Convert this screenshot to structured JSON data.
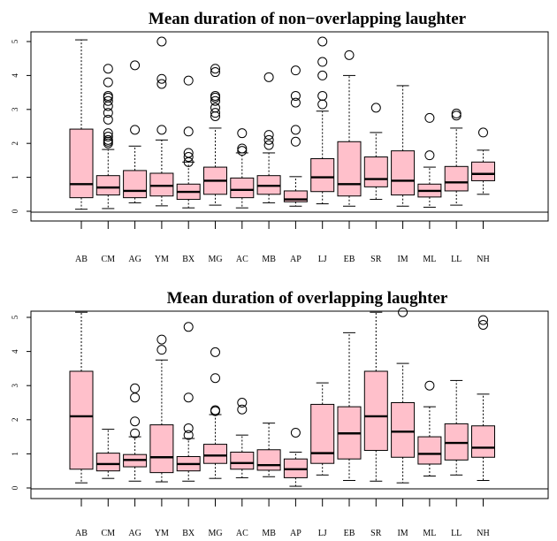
{
  "chart_data": [
    {
      "type": "boxplot",
      "title": "Mean duration of non−overlapping laughter",
      "xlabel": "",
      "ylabel": "",
      "ylim": [
        0,
        5
      ],
      "yticks": [
        "0",
        "1",
        "2",
        "3",
        "4",
        "5"
      ],
      "categories": [
        "AB",
        "CM",
        "AG",
        "YM",
        "BX",
        "MG",
        "AC",
        "MB",
        "AP",
        "LJ",
        "EB",
        "SR",
        "IM",
        "ML",
        "LL",
        "NH"
      ],
      "fill_color": "#ffc0cb",
      "boxes": [
        {
          "q1": 0.4,
          "median": 0.8,
          "q3": 2.42,
          "lower": 0.06,
          "upper": 5.05,
          "outliers": []
        },
        {
          "q1": 0.48,
          "median": 0.7,
          "q3": 1.05,
          "lower": 0.08,
          "upper": 1.82,
          "outliers": [
            2.0,
            2.05,
            2.1,
            2.2,
            2.3,
            2.7,
            2.9,
            3.1,
            3.25,
            3.35,
            3.4,
            3.8,
            4.2
          ]
        },
        {
          "q1": 0.4,
          "median": 0.6,
          "q3": 1.2,
          "lower": 0.25,
          "upper": 1.92,
          "outliers": [
            2.4,
            4.3
          ]
        },
        {
          "q1": 0.45,
          "median": 0.75,
          "q3": 1.12,
          "lower": 0.16,
          "upper": 2.1,
          "outliers": [
            2.4,
            3.75,
            3.9,
            5.0
          ]
        },
        {
          "q1": 0.35,
          "median": 0.57,
          "q3": 0.8,
          "lower": 0.1,
          "upper": 1.45,
          "outliers": [
            1.45,
            1.6,
            1.72,
            2.35,
            3.85
          ]
        },
        {
          "q1": 0.5,
          "median": 0.9,
          "q3": 1.3,
          "lower": 0.18,
          "upper": 2.45,
          "outliers": [
            2.8,
            2.9,
            3.05,
            3.25,
            3.35,
            3.4,
            4.1,
            4.2
          ]
        },
        {
          "q1": 0.4,
          "median": 0.63,
          "q3": 0.98,
          "lower": 0.1,
          "upper": 1.72,
          "outliers": [
            1.78,
            1.85,
            2.3
          ]
        },
        {
          "q1": 0.5,
          "median": 0.75,
          "q3": 1.05,
          "lower": 0.25,
          "upper": 1.72,
          "outliers": [
            1.95,
            2.1,
            2.25,
            3.95
          ]
        },
        {
          "q1": 0.28,
          "median": 0.35,
          "q3": 0.6,
          "lower": 0.15,
          "upper": 1.02,
          "outliers": [
            2.05,
            2.4,
            3.2,
            3.4,
            4.15
          ]
        },
        {
          "q1": 0.58,
          "median": 1.0,
          "q3": 1.55,
          "lower": 0.22,
          "upper": 2.95,
          "outliers": [
            3.15,
            3.4,
            4.0,
            4.4,
            5.0
          ]
        },
        {
          "q1": 0.45,
          "median": 0.8,
          "q3": 2.05,
          "lower": 0.15,
          "upper": 4.0,
          "outliers": [
            4.6
          ]
        },
        {
          "q1": 0.72,
          "median": 0.95,
          "q3": 1.6,
          "lower": 0.35,
          "upper": 2.32,
          "outliers": [
            3.05
          ]
        },
        {
          "q1": 0.48,
          "median": 0.9,
          "q3": 1.78,
          "lower": 0.15,
          "upper": 3.7,
          "outliers": []
        },
        {
          "q1": 0.42,
          "median": 0.6,
          "q3": 0.8,
          "lower": 0.12,
          "upper": 1.3,
          "outliers": [
            1.65,
            2.75
          ]
        },
        {
          "q1": 0.6,
          "median": 0.85,
          "q3": 1.32,
          "lower": 0.18,
          "upper": 2.45,
          "outliers": [
            2.82,
            2.88
          ]
        },
        {
          "q1": 0.9,
          "median": 1.1,
          "q3": 1.45,
          "lower": 0.5,
          "upper": 1.8,
          "outliers": [
            2.32
          ]
        }
      ]
    },
    {
      "type": "boxplot",
      "title": "Mean duration of overlapping laughter",
      "xlabel": "",
      "ylabel": "",
      "ylim": [
        0,
        5.15
      ],
      "yticks": [
        "0",
        "1",
        "2",
        "3",
        "4",
        "5"
      ],
      "categories": [
        "AB",
        "CM",
        "AG",
        "YM",
        "BX",
        "MG",
        "AC",
        "MB",
        "AP",
        "LJ",
        "EB",
        "SR",
        "IM",
        "ML",
        "LL",
        "NH"
      ],
      "fill_color": "#ffc0cb",
      "boxes": [
        {
          "q1": 0.55,
          "median": 2.1,
          "q3": 3.42,
          "lower": 0.15,
          "upper": 5.15,
          "outliers": []
        },
        {
          "q1": 0.5,
          "median": 0.7,
          "q3": 1.02,
          "lower": 0.28,
          "upper": 1.72,
          "outliers": []
        },
        {
          "q1": 0.62,
          "median": 0.82,
          "q3": 0.98,
          "lower": 0.2,
          "upper": 1.5,
          "outliers": [
            1.6,
            1.95,
            2.65,
            2.92
          ]
        },
        {
          "q1": 0.45,
          "median": 0.9,
          "q3": 1.85,
          "lower": 0.18,
          "upper": 3.75,
          "outliers": [
            4.05,
            4.35
          ]
        },
        {
          "q1": 0.5,
          "median": 0.7,
          "q3": 0.92,
          "lower": 0.2,
          "upper": 1.45,
          "outliers": [
            1.55,
            1.75,
            2.65,
            4.72
          ]
        },
        {
          "q1": 0.72,
          "median": 0.95,
          "q3": 1.28,
          "lower": 0.28,
          "upper": 2.15,
          "outliers": [
            2.25,
            2.28,
            3.22,
            3.98
          ]
        },
        {
          "q1": 0.55,
          "median": 0.73,
          "q3": 1.05,
          "lower": 0.3,
          "upper": 1.55,
          "outliers": [
            2.3,
            2.5
          ]
        },
        {
          "q1": 0.52,
          "median": 0.67,
          "q3": 1.12,
          "lower": 0.33,
          "upper": 1.9,
          "outliers": []
        },
        {
          "q1": 0.3,
          "median": 0.55,
          "q3": 0.85,
          "lower": 0.05,
          "upper": 1.05,
          "outliers": [
            1.62
          ]
        },
        {
          "q1": 0.72,
          "median": 1.02,
          "q3": 2.45,
          "lower": 0.38,
          "upper": 3.08,
          "outliers": []
        },
        {
          "q1": 0.85,
          "median": 1.6,
          "q3": 2.38,
          "lower": 0.22,
          "upper": 4.55,
          "outliers": []
        },
        {
          "q1": 1.1,
          "median": 2.1,
          "q3": 3.42,
          "lower": 0.2,
          "upper": 5.15,
          "outliers": []
        },
        {
          "q1": 0.9,
          "median": 1.65,
          "q3": 2.5,
          "lower": 0.15,
          "upper": 3.65,
          "outliers": [
            5.15
          ]
        },
        {
          "q1": 0.7,
          "median": 1.0,
          "q3": 1.5,
          "lower": 0.35,
          "upper": 2.38,
          "outliers": [
            3.0
          ]
        },
        {
          "q1": 0.82,
          "median": 1.32,
          "q3": 1.88,
          "lower": 0.38,
          "upper": 3.15,
          "outliers": []
        },
        {
          "q1": 0.9,
          "median": 1.18,
          "q3": 1.82,
          "lower": 0.22,
          "upper": 2.75,
          "outliers": [
            4.78,
            4.92
          ]
        }
      ]
    }
  ]
}
